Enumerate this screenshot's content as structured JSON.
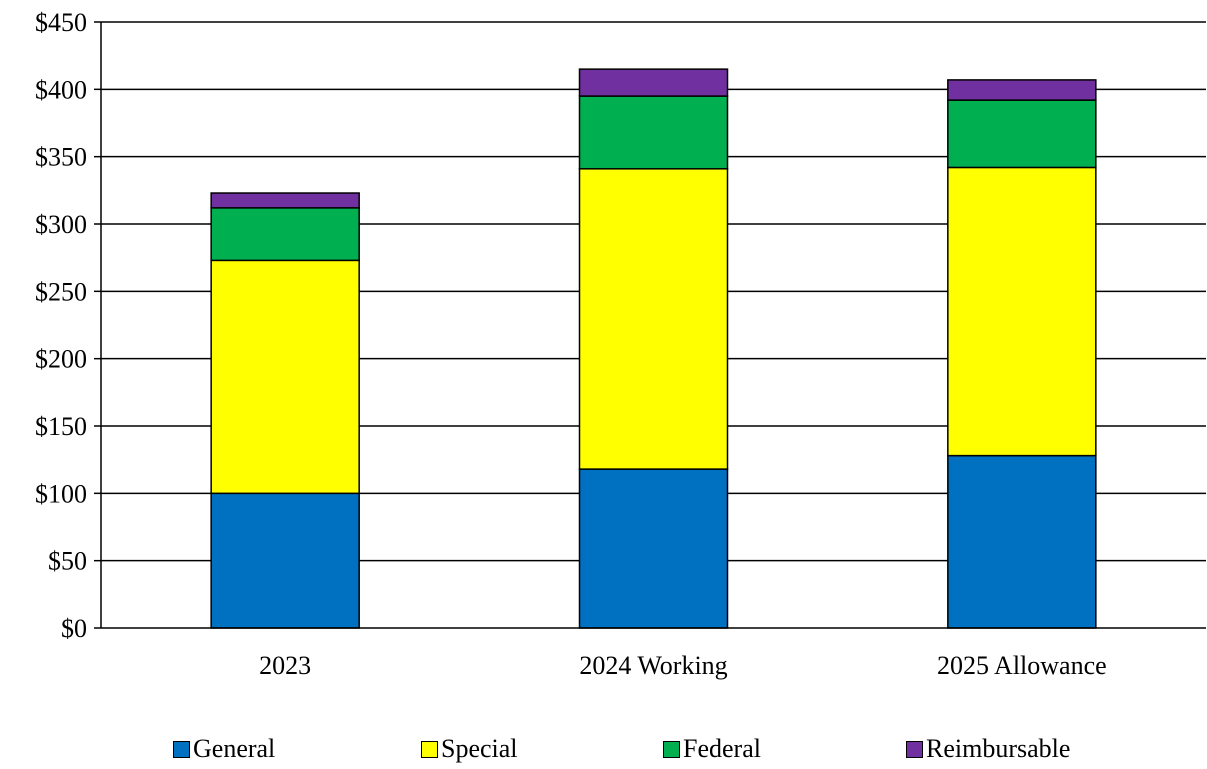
{
  "chart_data": {
    "type": "bar",
    "stacked": true,
    "categories": [
      "2023",
      "2024 Working",
      "2025 Allowance"
    ],
    "series": [
      {
        "name": "General",
        "color": "#0070C0",
        "values": [
          100,
          118,
          128
        ]
      },
      {
        "name": "Special",
        "color": "#FFFF00",
        "values": [
          173,
          223,
          214
        ]
      },
      {
        "name": "Federal",
        "color": "#00B050",
        "values": [
          39,
          54,
          50
        ]
      },
      {
        "name": "Reimbursable",
        "color": "#7030A0",
        "values": [
          11,
          20,
          15
        ]
      }
    ],
    "ylim": [
      0,
      450
    ],
    "yticks": [
      0,
      50,
      100,
      150,
      200,
      250,
      300,
      350,
      400,
      450
    ],
    "ytick_labels": [
      "$0",
      "$50",
      "$100",
      "$150",
      "$200",
      "$250",
      "$300",
      "$350",
      "$400",
      "$450"
    ],
    "grid": true,
    "legend": "bottom"
  }
}
